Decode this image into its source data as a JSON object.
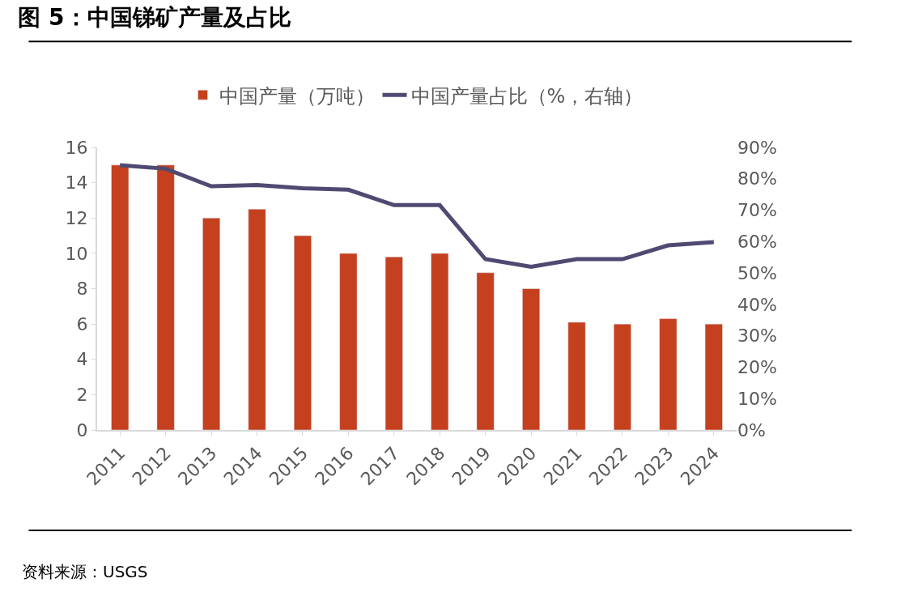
{
  "chart_data": {
    "type": "bar",
    "title": "图 5：中国锑矿产量及占比",
    "categories": [
      "2011",
      "2012",
      "2013",
      "2014",
      "2015",
      "2016",
      "2017",
      "2018",
      "2019",
      "2020",
      "2021",
      "2022",
      "2023",
      "2024"
    ],
    "series": [
      {
        "name": "中国产量（万吨）",
        "color": "#c5401f",
        "values": [
          15,
          15,
          12,
          12.5,
          11,
          10,
          9.8,
          10,
          8.9,
          8,
          6.1,
          6,
          6.3,
          6
        ]
      },
      {
        "name": "中国产量占比（%，右轴）",
        "type": "line",
        "axis": "y2",
        "color": "#4f4a72",
        "values": [
          84.3,
          83.2,
          77.6,
          78,
          77,
          76.5,
          71.6,
          71.6,
          54.4,
          52,
          54.4,
          54.4,
          58.8,
          59.8
        ]
      }
    ],
    "ylim": [
      0,
      16
    ],
    "yticks": [
      0,
      2,
      4,
      6,
      8,
      10,
      12,
      14,
      16
    ],
    "y2lim": [
      0,
      90
    ],
    "y2ticks": [
      {
        "value": 0,
        "label": "0%"
      },
      {
        "value": 10,
        "label": "10%"
      },
      {
        "value": 20,
        "label": "20%"
      },
      {
        "value": 30,
        "label": "30%"
      },
      {
        "value": 40,
        "label": "40%"
      },
      {
        "value": 50,
        "label": "50%"
      },
      {
        "value": 60,
        "label": "60%"
      },
      {
        "value": 70,
        "label": "70%"
      },
      {
        "value": 80,
        "label": "80%"
      },
      {
        "value": 90,
        "label": "90%"
      }
    ],
    "legend": "top",
    "marker": "none",
    "annotations": [
      "资料来源：USGS"
    ]
  }
}
